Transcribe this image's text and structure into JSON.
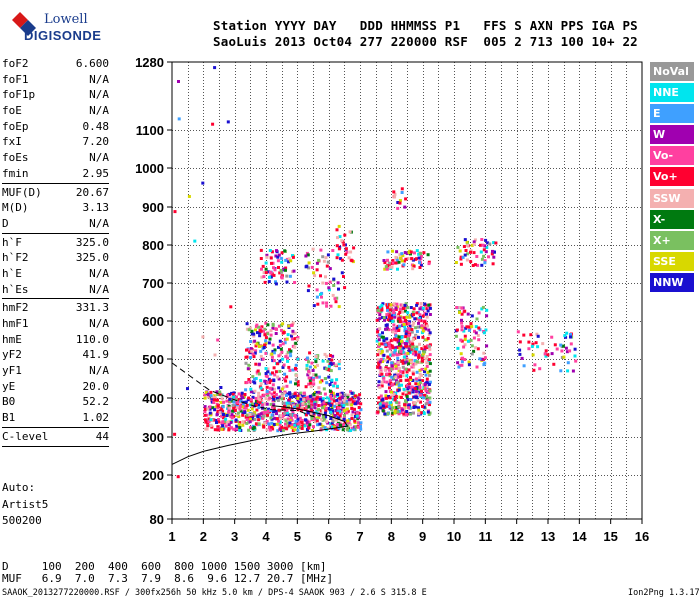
{
  "logo": {
    "brand_line1": "Lowell",
    "brand_line2": "DIGISONDE"
  },
  "header": {
    "line1": "Station YYYY DAY   DDD HHMMSS P1   FFS S AXN PPS IGA PS",
    "line2": "SaoLuis 2013 Oct04 277 220000 RSF  005 2 713 100 10+ 22"
  },
  "params": [
    [
      [
        "foF2",
        "6.600"
      ],
      [
        "foF1",
        "N/A"
      ],
      [
        "foF1p",
        "N/A"
      ],
      [
        "foE",
        "N/A"
      ],
      [
        "foEp",
        "0.48"
      ],
      [
        "fxI",
        "7.20"
      ],
      [
        "foEs",
        "N/A"
      ],
      [
        "fmin",
        "2.95"
      ]
    ],
    [
      [
        "MUF(D)",
        "20.67"
      ],
      [
        "M(D)",
        "3.13"
      ],
      [
        "D",
        "N/A"
      ]
    ],
    [
      [
        "h`F",
        "325.0"
      ],
      [
        "h`F2",
        "325.0"
      ],
      [
        "h`E",
        "N/A"
      ],
      [
        "h`Es",
        "N/A"
      ]
    ],
    [
      [
        "hmF2",
        "331.3"
      ],
      [
        "hmF1",
        "N/A"
      ],
      [
        "hmE",
        "110.0"
      ],
      [
        "yF2",
        "41.9"
      ],
      [
        "yF1",
        "N/A"
      ],
      [
        "yE",
        "20.0"
      ],
      [
        "B0",
        "52.2"
      ],
      [
        "B1",
        "1.02"
      ]
    ],
    [
      [
        "C-level",
        "44"
      ]
    ]
  ],
  "auto": {
    "line1": "Auto:",
    "line2": "Artist5",
    "line3": "500200"
  },
  "legend": [
    {
      "label": "NoVal",
      "color": "#999999"
    },
    {
      "label": "NNE",
      "color": "#00e5ee"
    },
    {
      "label": "E",
      "color": "#3fa0ff"
    },
    {
      "label": "W",
      "color": "#a000b0"
    },
    {
      "label": "Vo-",
      "color": "#ff40a0"
    },
    {
      "label": "Vo+",
      "color": "#ff0030"
    },
    {
      "label": "SSW",
      "color": "#f4b0b0"
    },
    {
      "label": "X-",
      "color": "#007a10"
    },
    {
      "label": "X+",
      "color": "#7ac060"
    },
    {
      "label": "SSE",
      "color": "#d8d800"
    },
    {
      "label": "NNW",
      "color": "#1a10d0"
    }
  ],
  "mufTable": {
    "dLine": "D     100  200  400  600  800 1000 1500 3000 [km]",
    "mufLine": "MUF   6.9  7.0  7.3  7.9  8.6  9.6 12.7 20.7 [MHz]"
  },
  "footer": {
    "left": "SAAOK_2013277220000.RSF / 300fx256h 50 kHz 5.0 km / DPS-4 SAAOK 903 / 2.6 S 315.8 E",
    "right": "Ion2Png 1.3.17"
  },
  "chart_data": {
    "type": "scatter",
    "xlim": [
      1,
      16
    ],
    "ylim": [
      80,
      1280
    ],
    "x_ticks": [
      1,
      2,
      3,
      4,
      5,
      6,
      7,
      8,
      9,
      10,
      11,
      12,
      13,
      14,
      15,
      16
    ],
    "y_ticks": [
      80,
      200,
      300,
      400,
      500,
      600,
      700,
      800,
      900,
      1000,
      1100,
      1280
    ],
    "grid": true,
    "legend_position": "right",
    "series": [
      {
        "clusters": [
          {
            "x": [
              2.0,
              7.0
            ],
            "y": [
              320,
              420
            ],
            "n": 900
          },
          {
            "x": [
              7.5,
              9.2
            ],
            "y": [
              360,
              650
            ],
            "n": 750
          },
          {
            "x": [
              3.3,
              5.0
            ],
            "y": [
              420,
              600
            ],
            "n": 220
          },
          {
            "x": [
              5.2,
              6.3
            ],
            "y": [
              420,
              520
            ],
            "n": 80
          },
          {
            "x": [
              3.8,
              4.9
            ],
            "y": [
              700,
              790
            ],
            "n": 70
          },
          {
            "x": [
              5.2,
              6.5
            ],
            "y": [
              640,
              800
            ],
            "n": 60
          },
          {
            "x": [
              7.7,
              9.2
            ],
            "y": [
              740,
              790
            ],
            "n": 70
          },
          {
            "x": [
              10.0,
              11.3
            ],
            "y": [
              750,
              820
            ],
            "n": 55
          },
          {
            "x": [
              10.0,
              11.0
            ],
            "y": [
              480,
              640
            ],
            "n": 80
          },
          {
            "x": [
              12.0,
              13.9
            ],
            "y": [
              470,
              580
            ],
            "n": 55
          },
          {
            "x": [
              6.2,
              6.8
            ],
            "y": [
              760,
              860
            ],
            "n": 25
          },
          {
            "x": [
              8.0,
              8.5
            ],
            "y": [
              900,
              960
            ],
            "n": 12
          },
          {
            "x": [
              1.0,
              3.2
            ],
            "y": [
              180,
              1280
            ],
            "n": 18
          }
        ]
      }
    ],
    "lines": [
      {
        "name": "profile-solid",
        "points": [
          [
            1,
            228
          ],
          [
            1.5,
            248
          ],
          [
            2,
            262
          ],
          [
            2.8,
            278
          ],
          [
            3.8,
            295
          ],
          [
            4.8,
            308
          ],
          [
            5.8,
            318
          ],
          [
            6.6,
            328
          ],
          [
            6.5,
            340
          ],
          [
            6,
            355
          ],
          [
            5,
            372
          ],
          [
            4.5,
            378
          ],
          [
            4.2,
            380
          ]
        ]
      },
      {
        "name": "trace-dashed",
        "points": [
          [
            1,
            490
          ],
          [
            1.6,
            455
          ],
          [
            2.2,
            420
          ],
          [
            3,
            395
          ],
          [
            3.6,
            380
          ],
          [
            4.2,
            370
          ],
          [
            5,
            368
          ],
          [
            5.6,
            350
          ]
        ]
      }
    ]
  }
}
